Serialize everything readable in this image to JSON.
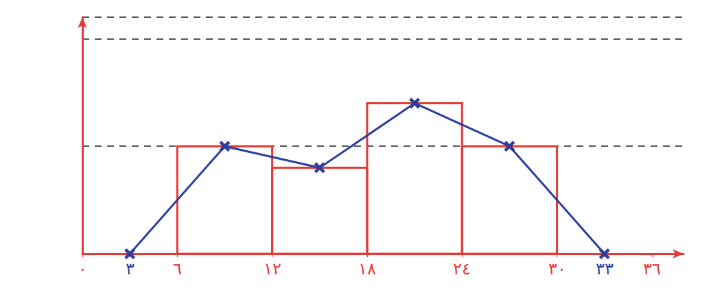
{
  "chart_data": {
    "type": "histogram",
    "bins": [
      6,
      12,
      18,
      24,
      30
    ],
    "counts": [
      10,
      8,
      14,
      10
    ],
    "color": "#e53935",
    "series": [
      {
        "type": "line",
        "color": "#2c3e9e",
        "marker": "x",
        "x": [
          3,
          9,
          15,
          21,
          27,
          33
        ],
        "values": [
          0,
          10,
          8,
          14,
          10,
          0
        ]
      }
    ],
    "xlim": [
      0,
      38
    ],
    "xticks": [
      {
        "value": 0,
        "label": "٠"
      },
      {
        "value": 3,
        "label": "٣"
      },
      {
        "value": 6,
        "label": "٦"
      },
      {
        "value": 12,
        "label": "١٢"
      },
      {
        "value": 18,
        "label": "١٨"
      },
      {
        "value": 24,
        "label": "٢٤"
      },
      {
        "value": 30,
        "label": "٣٠"
      },
      {
        "value": 33,
        "label": "٣٣"
      },
      {
        "value": 36,
        "label": "٣٦"
      }
    ],
    "ylim": [
      0,
      22
    ],
    "yticks": [
      0,
      10,
      20
    ],
    "grid": true,
    "tick_labels": "x"
  }
}
